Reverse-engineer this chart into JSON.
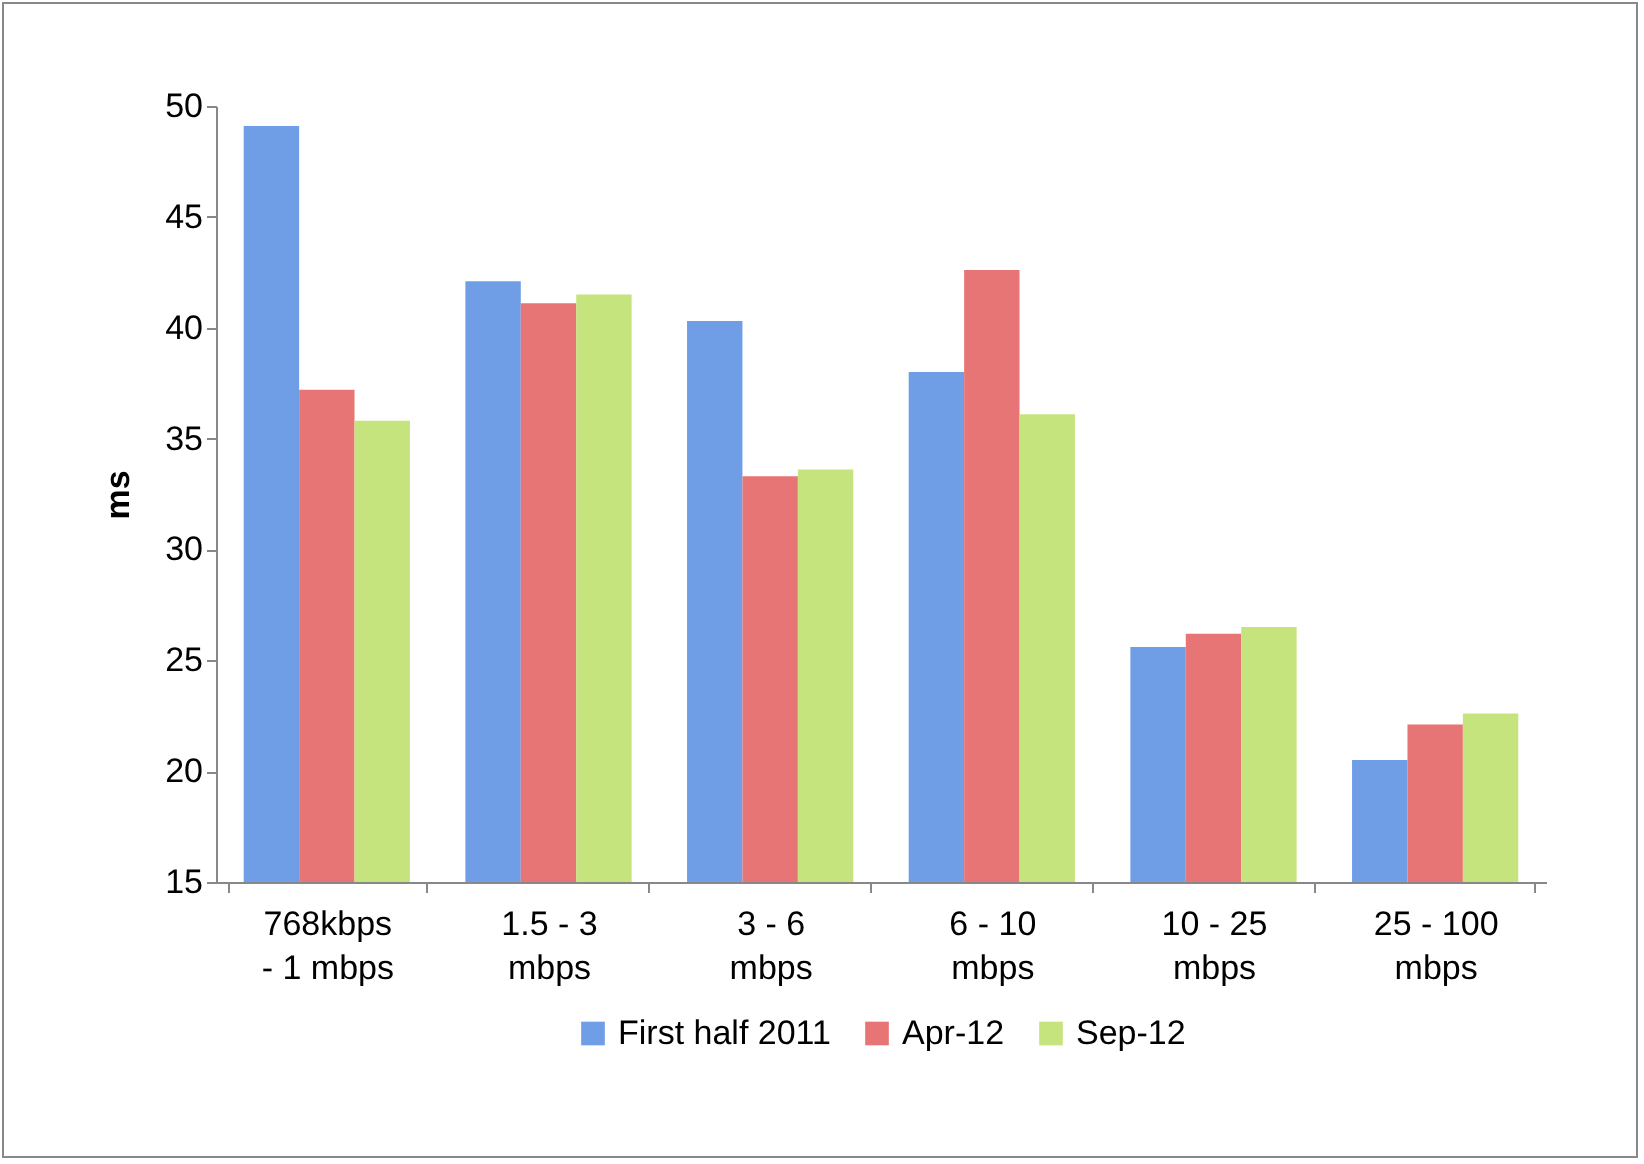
{
  "chart_data": {
    "type": "bar",
    "ylabel": "ms",
    "categories": [
      "768kbps\n- 1 mbps",
      "1.5 - 3\nmbps",
      "3 - 6\nmbps",
      "6 - 10\nmbps",
      "10 - 25\nmbps",
      "25 - 100\nmbps"
    ],
    "series": [
      {
        "name": "First half 2011",
        "color": "#6f9ee6",
        "values": [
          49.1,
          42.1,
          40.3,
          38.0,
          25.6,
          20.5
        ]
      },
      {
        "name": "Apr-12",
        "color": "#e87575",
        "values": [
          37.2,
          41.1,
          33.3,
          42.6,
          26.2,
          22.1
        ]
      },
      {
        "name": "Sep-12",
        "color": "#c6e47e",
        "values": [
          35.8,
          41.5,
          33.6,
          36.1,
          26.5,
          22.6
        ]
      }
    ],
    "ylim": [
      15,
      50
    ],
    "yticks": [
      15,
      20,
      25,
      30,
      35,
      40,
      45,
      50
    ],
    "grid": false,
    "legend": "bottom"
  }
}
